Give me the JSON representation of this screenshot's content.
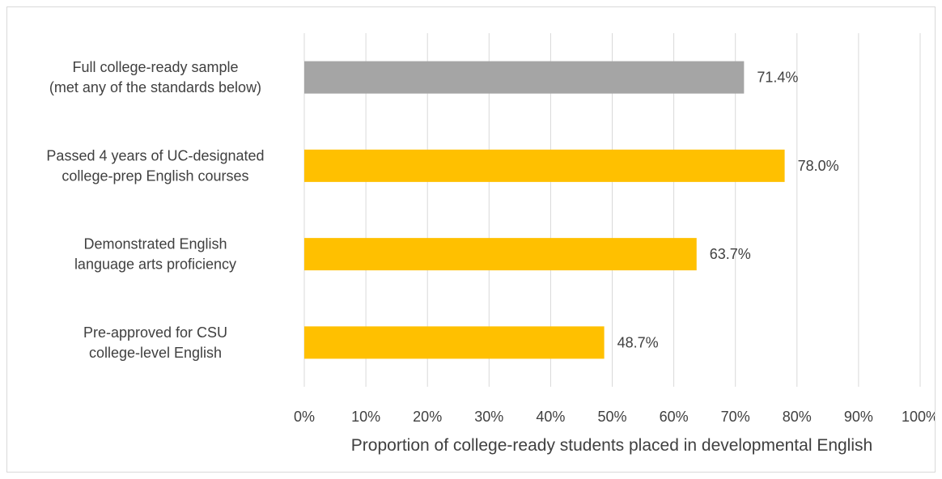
{
  "chart_data": {
    "type": "bar",
    "orientation": "horizontal",
    "title": "",
    "xlabel": "Proportion of college-ready students placed in developmental English",
    "ylabel": "",
    "xlim": [
      0,
      100
    ],
    "x_ticks": [
      "0%",
      "10%",
      "20%",
      "30%",
      "40%",
      "50%",
      "60%",
      "70%",
      "80%",
      "90%",
      "100%"
    ],
    "grid": "vertical",
    "legend": "none",
    "categories": [
      [
        "Full college-ready sample",
        "(met any of the standards below)"
      ],
      [
        "Passed 4 years of UC-designated",
        "college-prep English courses"
      ],
      [
        "Demonstrated English",
        "language arts proficiency"
      ],
      [
        "Pre-approved for CSU",
        "college-level English"
      ]
    ],
    "values": [
      71.4,
      78.0,
      63.7,
      48.7
    ],
    "data_labels": [
      "71.4%",
      "78.0%",
      "63.7%",
      "48.7%"
    ],
    "colors": [
      "#a5a5a5",
      "#ffc000",
      "#ffc000",
      "#ffc000"
    ]
  },
  "style": {
    "grid_color": "#d9d9d9",
    "text_color": "#404040"
  }
}
